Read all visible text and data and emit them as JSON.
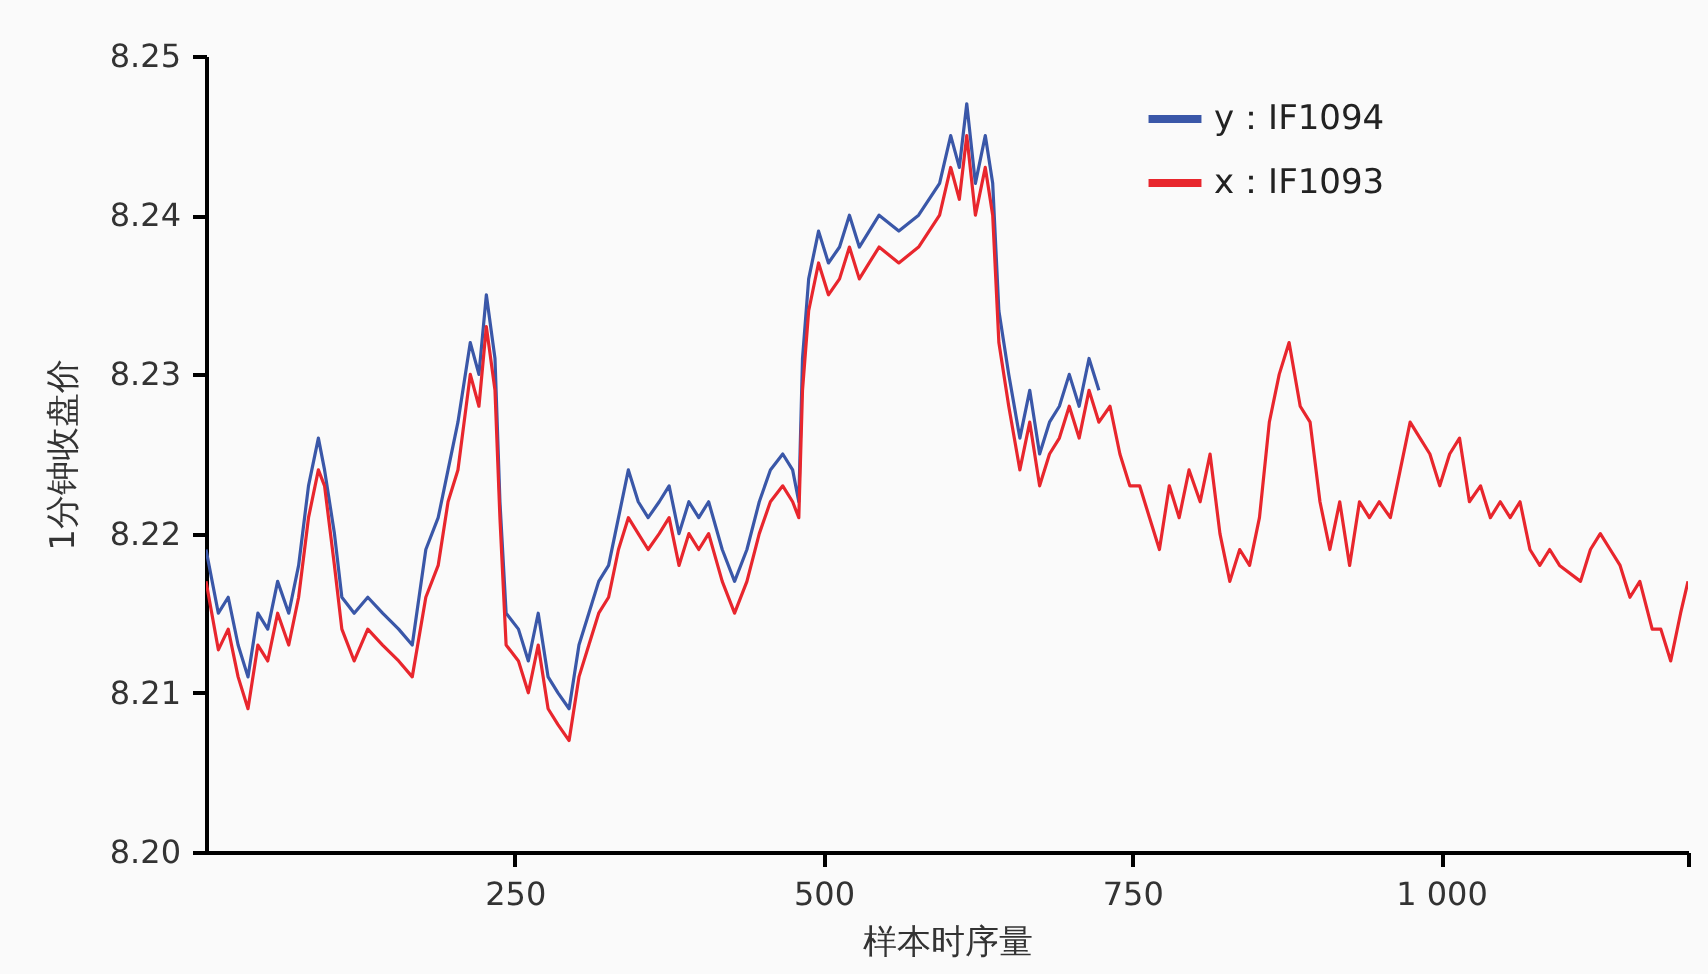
{
  "chart_data": {
    "type": "line",
    "xlabel": "样本时序量",
    "ylabel": "1分钟收盘价",
    "xlim": [
      0,
      1200
    ],
    "ylim": [
      8.2,
      8.25
    ],
    "xticks": [
      250,
      500,
      750,
      {
        "value": 1000,
        "label": "1 000"
      },
      {
        "value": 1200,
        "label": null
      }
    ],
    "yticks": [
      {
        "value": 8.2,
        "label": "8.20"
      },
      8.21,
      8.22,
      8.23,
      8.24,
      8.25
    ],
    "grid": false,
    "legend": "top right",
    "series": [
      {
        "name": "y：IF1094",
        "color": "#3a57a8",
        "x": [
          0,
          10,
          18,
          26,
          34,
          42,
          50,
          58,
          67,
          75,
          83,
          91,
          96,
          104,
          110,
          120,
          131,
          143,
          156,
          167,
          178,
          188,
          196,
          204,
          214,
          221,
          227,
          234,
          238,
          243,
          253,
          261,
          269,
          277,
          285,
          294,
          302,
          310,
          318,
          326,
          334,
          342,
          350,
          358,
          367,
          375,
          383,
          391,
          399,
          407,
          418,
          428,
          438,
          448,
          457,
          467,
          475,
          480,
          483,
          488,
          496,
          504,
          513,
          521,
          529,
          537,
          545,
          561,
          577,
          594,
          603,
          610,
          616,
          623,
          631,
          637,
          642,
          650,
          659,
          667,
          675,
          683,
          691,
          699,
          707,
          715,
          723
        ],
        "values": [
          8.219,
          8.215,
          8.216,
          8.213,
          8.211,
          8.215,
          8.214,
          8.217,
          8.215,
          8.218,
          8.223,
          8.226,
          8.224,
          8.22,
          8.216,
          8.215,
          8.216,
          8.215,
          8.214,
          8.213,
          8.219,
          8.221,
          8.224,
          8.227,
          8.232,
          8.23,
          8.235,
          8.231,
          8.222,
          8.215,
          8.214,
          8.212,
          8.215,
          8.211,
          8.21,
          8.209,
          8.213,
          8.215,
          8.217,
          8.218,
          8.221,
          8.224,
          8.222,
          8.221,
          8.222,
          8.223,
          8.22,
          8.222,
          8.221,
          8.222,
          8.219,
          8.217,
          8.219,
          8.222,
          8.224,
          8.225,
          8.224,
          8.222,
          8.231,
          8.236,
          8.239,
          8.237,
          8.238,
          8.24,
          8.238,
          8.239,
          8.24,
          8.239,
          8.24,
          8.242,
          8.245,
          8.243,
          8.247,
          8.242,
          8.245,
          8.242,
          8.234,
          8.23,
          8.226,
          8.229,
          8.225,
          8.227,
          8.228,
          8.23,
          8.228,
          8.231,
          8.229
        ]
      },
      {
        "name": "x：IF1093",
        "color": "#e8262d",
        "x": [
          0,
          10,
          18,
          26,
          34,
          42,
          50,
          58,
          67,
          75,
          83,
          91,
          96,
          104,
          110,
          120,
          131,
          143,
          156,
          167,
          178,
          188,
          196,
          204,
          214,
          221,
          227,
          234,
          238,
          243,
          253,
          261,
          269,
          277,
          285,
          294,
          302,
          310,
          318,
          326,
          334,
          342,
          350,
          358,
          367,
          375,
          383,
          391,
          399,
          407,
          418,
          428,
          438,
          448,
          457,
          467,
          475,
          480,
          483,
          488,
          496,
          504,
          513,
          521,
          529,
          537,
          545,
          561,
          577,
          594,
          603,
          610,
          616,
          623,
          631,
          637,
          642,
          650,
          659,
          667,
          675,
          683,
          691,
          699,
          707,
          715,
          723,
          732,
          740,
          748,
          756,
          764,
          772,
          780,
          788,
          796,
          805,
          813,
          821,
          829,
          837,
          845,
          853,
          861,
          869,
          877,
          886,
          894,
          902,
          910,
          918,
          926,
          934,
          942,
          950,
          959,
          967,
          975,
          983,
          991,
          999,
          1007,
          1015,
          1023,
          1032,
          1040,
          1048,
          1056,
          1064,
          1072,
          1080,
          1088,
          1096,
          1113,
          1121,
          1129,
          1137,
          1145,
          1153,
          1161,
          1171,
          1178,
          1186,
          1194,
          1200
        ],
        "values": [
          8.217,
          8.2127,
          8.214,
          8.211,
          8.209,
          8.213,
          8.212,
          8.215,
          8.213,
          8.216,
          8.221,
          8.224,
          8.223,
          8.218,
          8.214,
          8.212,
          8.214,
          8.213,
          8.212,
          8.211,
          8.216,
          8.218,
          8.222,
          8.224,
          8.23,
          8.228,
          8.233,
          8.229,
          8.221,
          8.213,
          8.212,
          8.21,
          8.213,
          8.209,
          8.208,
          8.207,
          8.211,
          8.213,
          8.215,
          8.216,
          8.219,
          8.221,
          8.22,
          8.219,
          8.22,
          8.221,
          8.218,
          8.22,
          8.219,
          8.22,
          8.217,
          8.215,
          8.217,
          8.22,
          8.222,
          8.223,
          8.222,
          8.221,
          8.229,
          8.234,
          8.237,
          8.235,
          8.236,
          8.238,
          8.236,
          8.237,
          8.238,
          8.237,
          8.238,
          8.24,
          8.243,
          8.241,
          8.245,
          8.24,
          8.243,
          8.24,
          8.232,
          8.228,
          8.224,
          8.227,
          8.223,
          8.225,
          8.226,
          8.228,
          8.226,
          8.229,
          8.227,
          8.228,
          8.225,
          8.223,
          8.223,
          8.221,
          8.219,
          8.223,
          8.221,
          8.224,
          8.222,
          8.225,
          8.22,
          8.217,
          8.219,
          8.218,
          8.221,
          8.227,
          8.23,
          8.232,
          8.228,
          8.227,
          8.222,
          8.219,
          8.222,
          8.218,
          8.222,
          8.221,
          8.222,
          8.221,
          8.224,
          8.227,
          8.226,
          8.225,
          8.223,
          8.225,
          8.226,
          8.222,
          8.223,
          8.221,
          8.222,
          8.221,
          8.222,
          8.219,
          8.218,
          8.219,
          8.218,
          8.217,
          8.219,
          8.22,
          8.219,
          8.218,
          8.216,
          8.217,
          8.214,
          8.214,
          8.212,
          8.215,
          8.217
        ]
      }
    ]
  }
}
